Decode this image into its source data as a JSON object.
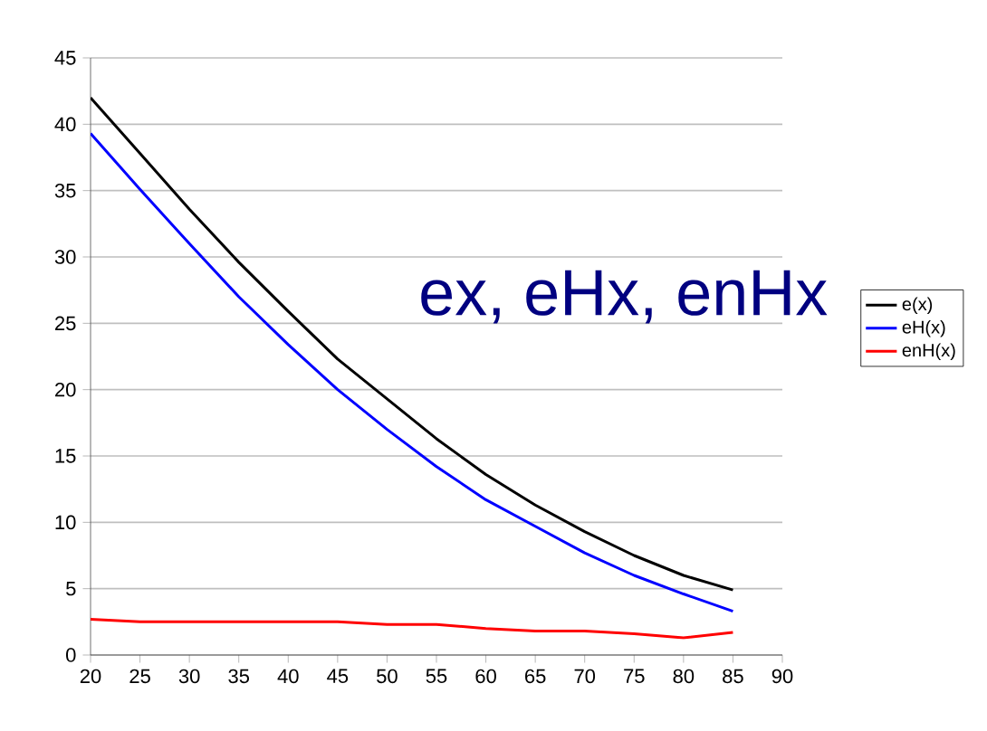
{
  "chart_data": {
    "type": "line",
    "title": "ex, eHx, enHx",
    "x": [
      20,
      25,
      30,
      35,
      40,
      45,
      50,
      55,
      60,
      65,
      70,
      75,
      80,
      85
    ],
    "series": [
      {
        "name": "e(x)",
        "color": "#000000",
        "values": [
          42,
          37.8,
          33.6,
          29.6,
          25.9,
          22.3,
          19.3,
          16.3,
          13.6,
          11.3,
          9.3,
          7.5,
          6.0,
          4.9
        ]
      },
      {
        "name": "eH(x)",
        "color": "#0000ff",
        "values": [
          39.3,
          35.1,
          31.0,
          27.0,
          23.4,
          20.0,
          17.0,
          14.2,
          11.7,
          9.7,
          7.7,
          6.0,
          4.6,
          3.3
        ]
      },
      {
        "name": "enH(x)",
        "color": "#ff0000",
        "values": [
          2.7,
          2.5,
          2.5,
          2.5,
          2.5,
          2.5,
          2.3,
          2.3,
          2.0,
          1.8,
          1.8,
          1.6,
          1.3,
          1.7
        ]
      }
    ],
    "xlim": [
      20,
      90
    ],
    "xticks": [
      20,
      25,
      30,
      35,
      40,
      45,
      50,
      55,
      60,
      65,
      70,
      75,
      80,
      85,
      90
    ],
    "ylim": [
      0,
      45
    ],
    "yticks": [
      0,
      5,
      10,
      15,
      20,
      25,
      30,
      35,
      40,
      45
    ],
    "grid": "y",
    "legend": "right",
    "marker": "none",
    "line_style": "solid"
  }
}
